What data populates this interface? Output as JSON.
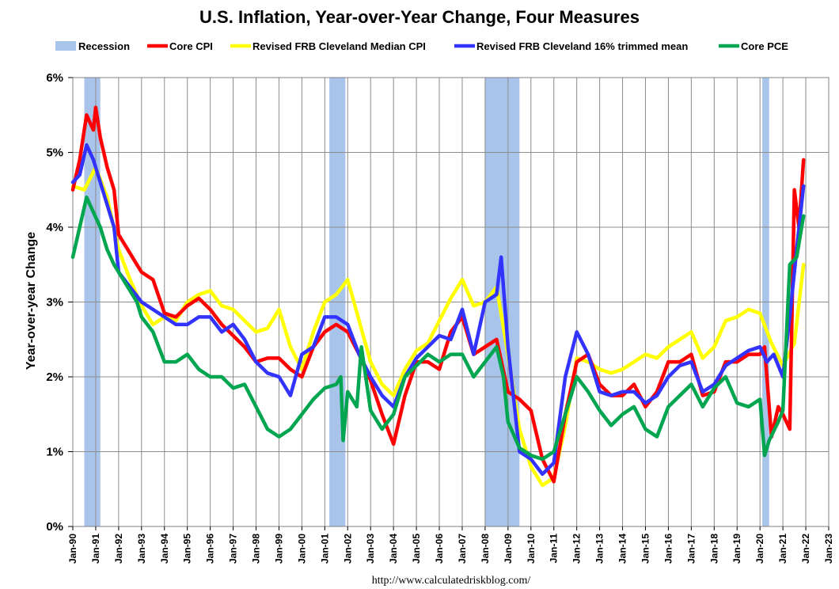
{
  "chart_data": {
    "type": "line",
    "title": "U.S. Inflation, Year-over-Year Change, Four Measures",
    "ylabel": "Year-over-year Change",
    "xlabel": "",
    "source": "http://www.calculatedriskblog.com/",
    "ylim": [
      0,
      6
    ],
    "yticks": [
      0,
      1,
      2,
      3,
      4,
      5,
      6
    ],
    "ytick_labels": [
      "0%",
      "1%",
      "2%",
      "3%",
      "4%",
      "5%",
      "6%"
    ],
    "xlim": [
      1990,
      2023
    ],
    "xticks": [
      1990,
      1991,
      1992,
      1993,
      1994,
      1995,
      1996,
      1997,
      1998,
      1999,
      2000,
      2001,
      2002,
      2003,
      2004,
      2005,
      2006,
      2007,
      2008,
      2009,
      2010,
      2011,
      2012,
      2013,
      2014,
      2015,
      2016,
      2017,
      2018,
      2019,
      2020,
      2021,
      2022,
      2023
    ],
    "xtick_labels": [
      "Jan-90",
      "Jan-91",
      "Jan-92",
      "Jan-93",
      "Jan-94",
      "Jan-95",
      "Jan-96",
      "Jan-97",
      "Jan-98",
      "Jan-99",
      "Jan-00",
      "Jan-01",
      "Jan-02",
      "Jan-03",
      "Jan-04",
      "Jan-05",
      "Jan-06",
      "Jan-07",
      "Jan-08",
      "Jan-09",
      "Jan-10",
      "Jan-11",
      "Jan-12",
      "Jan-13",
      "Jan-14",
      "Jan-15",
      "Jan-16",
      "Jan-17",
      "Jan-18",
      "Jan-19",
      "Jan-20",
      "Jan-21",
      "Jan-22",
      "Jan-23"
    ],
    "grid": true,
    "legend_position": "top",
    "recessions": [
      {
        "label": "Recession",
        "start": 1990.5,
        "end": 1991.2
      },
      {
        "label": "Recession",
        "start": 2001.2,
        "end": 2001.9
      },
      {
        "label": "Recession",
        "start": 2008.0,
        "end": 2009.5
      },
      {
        "label": "Recession",
        "start": 2020.1,
        "end": 2020.4
      }
    ],
    "legend": [
      {
        "name": "Recession",
        "color": "#a9c4eb",
        "kind": "patch"
      },
      {
        "name": "Core CPI",
        "color": "#ff0000",
        "kind": "line"
      },
      {
        "name": "Revised FRB Cleveland Median CPI",
        "color": "#ffff00",
        "kind": "line"
      },
      {
        "name": "Revised FRB Cleveland 16% trimmed mean",
        "color": "#3333ff",
        "kind": "line"
      },
      {
        "name": "Core PCE",
        "color": "#00a550",
        "kind": "line"
      }
    ],
    "series": [
      {
        "name": "Revised FRB Cleveland Median CPI",
        "color": "#ffff00",
        "x": [
          1990.0,
          1990.5,
          1991.0,
          1991.5,
          1992.0,
          1992.5,
          1993.0,
          1993.5,
          1994.0,
          1994.5,
          1995.0,
          1995.5,
          1996.0,
          1996.5,
          1997.0,
          1997.5,
          1998.0,
          1998.5,
          1999.0,
          1999.5,
          2000.0,
          2000.5,
          2001.0,
          2001.5,
          2002.0,
          2002.5,
          2003.0,
          2003.5,
          2004.0,
          2004.5,
          2005.0,
          2005.5,
          2006.0,
          2006.5,
          2007.0,
          2007.5,
          2008.0,
          2008.5,
          2009.0,
          2009.5,
          2010.0,
          2010.5,
          2011.0,
          2011.5,
          2012.0,
          2012.5,
          2013.0,
          2013.5,
          2014.0,
          2014.5,
          2015.0,
          2015.5,
          2016.0,
          2016.5,
          2017.0,
          2017.5,
          2018.0,
          2018.5,
          2019.0,
          2019.5,
          2020.0,
          2020.5,
          2021.0,
          2021.5,
          2021.9
        ],
        "values": [
          4.55,
          4.5,
          4.8,
          4.4,
          3.7,
          3.3,
          2.95,
          2.7,
          2.8,
          2.75,
          3.0,
          3.1,
          3.15,
          2.95,
          2.9,
          2.75,
          2.6,
          2.65,
          2.9,
          2.4,
          2.1,
          2.6,
          3.0,
          3.1,
          3.3,
          2.75,
          2.2,
          1.9,
          1.75,
          2.1,
          2.35,
          2.45,
          2.75,
          3.05,
          3.3,
          2.95,
          3.0,
          3.2,
          2.3,
          1.3,
          0.8,
          0.55,
          0.65,
          1.35,
          2.25,
          2.2,
          2.1,
          2.05,
          2.1,
          2.2,
          2.3,
          2.25,
          2.4,
          2.5,
          2.6,
          2.25,
          2.4,
          2.75,
          2.8,
          2.9,
          2.85,
          2.45,
          2.15,
          2.45,
          3.5
        ]
      },
      {
        "name": "Core CPI",
        "color": "#ff0000",
        "x": [
          1990.0,
          1990.3,
          1990.6,
          1990.9,
          1991.0,
          1991.2,
          1991.5,
          1991.8,
          1992.0,
          1992.4,
          1992.8,
          1993.0,
          1993.5,
          1994.0,
          1994.5,
          1995.0,
          1995.5,
          1996.0,
          1996.5,
          1997.0,
          1997.5,
          1998.0,
          1998.5,
          1999.0,
          1999.5,
          2000.0,
          2000.5,
          2001.0,
          2001.5,
          2002.0,
          2002.5,
          2003.0,
          2003.5,
          2004.0,
          2004.5,
          2005.0,
          2005.5,
          2006.0,
          2006.5,
          2007.0,
          2007.5,
          2008.0,
          2008.5,
          2009.0,
          2009.5,
          2010.0,
          2010.5,
          2011.0,
          2011.5,
          2012.0,
          2012.5,
          2013.0,
          2013.5,
          2014.0,
          2014.5,
          2015.0,
          2015.5,
          2016.0,
          2016.5,
          2017.0,
          2017.5,
          2018.0,
          2018.5,
          2019.0,
          2019.5,
          2020.0,
          2020.2,
          2020.5,
          2020.8,
          2021.0,
          2021.3,
          2021.5,
          2021.7,
          2021.9
        ],
        "values": [
          4.5,
          4.9,
          5.5,
          5.3,
          5.6,
          5.2,
          4.8,
          4.5,
          3.9,
          3.7,
          3.5,
          3.4,
          3.3,
          2.85,
          2.8,
          2.95,
          3.05,
          2.9,
          2.7,
          2.55,
          2.4,
          2.2,
          2.25,
          2.25,
          2.1,
          2.0,
          2.4,
          2.6,
          2.7,
          2.6,
          2.3,
          1.95,
          1.5,
          1.1,
          1.75,
          2.2,
          2.2,
          2.1,
          2.6,
          2.8,
          2.3,
          2.4,
          2.5,
          1.8,
          1.7,
          1.55,
          0.9,
          0.6,
          1.5,
          2.2,
          2.3,
          1.9,
          1.75,
          1.75,
          1.9,
          1.6,
          1.8,
          2.2,
          2.2,
          2.3,
          1.75,
          1.8,
          2.2,
          2.2,
          2.3,
          2.3,
          2.4,
          1.2,
          1.6,
          1.5,
          1.3,
          4.5,
          4.0,
          4.9
        ]
      },
      {
        "name": "Revised FRB Cleveland 16% trimmed mean",
        "color": "#3333ff",
        "x": [
          1990.0,
          1990.3,
          1990.6,
          1990.9,
          1991.2,
          1991.5,
          1991.8,
          1992.0,
          1992.5,
          1993.0,
          1993.5,
          1994.0,
          1994.5,
          1995.0,
          1995.5,
          1996.0,
          1996.5,
          1997.0,
          1997.5,
          1998.0,
          1998.5,
          1999.0,
          1999.5,
          2000.0,
          2000.5,
          2001.0,
          2001.5,
          2002.0,
          2002.5,
          2003.0,
          2003.5,
          2004.0,
          2004.5,
          2005.0,
          2005.5,
          2006.0,
          2006.5,
          2007.0,
          2007.5,
          2008.0,
          2008.5,
          2008.7,
          2009.0,
          2009.5,
          2010.0,
          2010.5,
          2011.0,
          2011.5,
          2012.0,
          2012.5,
          2013.0,
          2013.5,
          2014.0,
          2014.5,
          2015.0,
          2015.5,
          2016.0,
          2016.5,
          2017.0,
          2017.5,
          2018.0,
          2018.5,
          2019.0,
          2019.5,
          2020.0,
          2020.3,
          2020.6,
          2021.0,
          2021.3,
          2021.6,
          2021.9
        ],
        "values": [
          4.6,
          4.7,
          5.1,
          4.9,
          4.6,
          4.3,
          4.0,
          3.4,
          3.2,
          3.0,
          2.9,
          2.8,
          2.7,
          2.7,
          2.8,
          2.8,
          2.6,
          2.7,
          2.5,
          2.2,
          2.05,
          2.0,
          1.75,
          2.3,
          2.4,
          2.8,
          2.8,
          2.7,
          2.3,
          2.0,
          1.75,
          1.6,
          2.0,
          2.25,
          2.4,
          2.55,
          2.5,
          2.9,
          2.3,
          3.0,
          3.1,
          3.6,
          2.4,
          1.0,
          0.9,
          0.7,
          0.85,
          2.0,
          2.6,
          2.3,
          1.8,
          1.75,
          1.8,
          1.8,
          1.65,
          1.75,
          2.0,
          2.15,
          2.2,
          1.8,
          1.9,
          2.15,
          2.25,
          2.35,
          2.4,
          2.2,
          2.3,
          2.0,
          2.8,
          3.7,
          4.55
        ]
      },
      {
        "name": "Core PCE",
        "color": "#00a550",
        "x": [
          1990.0,
          1990.3,
          1990.6,
          1990.9,
          1991.2,
          1991.5,
          1991.8,
          1992.0,
          1992.4,
          1992.8,
          1993.0,
          1993.5,
          1994.0,
          1994.5,
          1995.0,
          1995.5,
          1996.0,
          1996.5,
          1997.0,
          1997.5,
          1998.0,
          1998.5,
          1999.0,
          1999.5,
          2000.0,
          2000.5,
          2001.0,
          2001.5,
          2001.7,
          2001.8,
          2002.0,
          2002.4,
          2002.6,
          2003.0,
          2003.5,
          2004.0,
          2004.5,
          2005.0,
          2005.5,
          2006.0,
          2006.5,
          2007.0,
          2007.5,
          2008.0,
          2008.5,
          2008.8,
          2009.0,
          2009.5,
          2010.0,
          2010.5,
          2011.0,
          2011.5,
          2012.0,
          2012.5,
          2013.0,
          2013.5,
          2014.0,
          2014.5,
          2015.0,
          2015.5,
          2016.0,
          2016.5,
          2017.0,
          2017.5,
          2018.0,
          2018.5,
          2019.0,
          2019.5,
          2020.0,
          2020.2,
          2020.4,
          2020.8,
          2021.0,
          2021.3,
          2021.6,
          2021.9
        ],
        "values": [
          3.6,
          4.0,
          4.4,
          4.2,
          4.0,
          3.7,
          3.5,
          3.4,
          3.2,
          3.0,
          2.8,
          2.6,
          2.2,
          2.2,
          2.3,
          2.1,
          2.0,
          2.0,
          1.85,
          1.9,
          1.6,
          1.3,
          1.2,
          1.3,
          1.5,
          1.7,
          1.85,
          1.9,
          2.0,
          1.15,
          1.8,
          1.6,
          2.4,
          1.55,
          1.3,
          1.5,
          2.0,
          2.15,
          2.3,
          2.2,
          2.3,
          2.3,
          2.0,
          2.2,
          2.4,
          2.0,
          1.4,
          1.05,
          0.95,
          0.9,
          1.0,
          1.5,
          2.0,
          1.8,
          1.55,
          1.35,
          1.5,
          1.6,
          1.3,
          1.2,
          1.6,
          1.75,
          1.9,
          1.6,
          1.85,
          2.0,
          1.65,
          1.6,
          1.7,
          0.95,
          1.15,
          1.4,
          1.55,
          3.5,
          3.6,
          4.15
        ]
      }
    ]
  }
}
